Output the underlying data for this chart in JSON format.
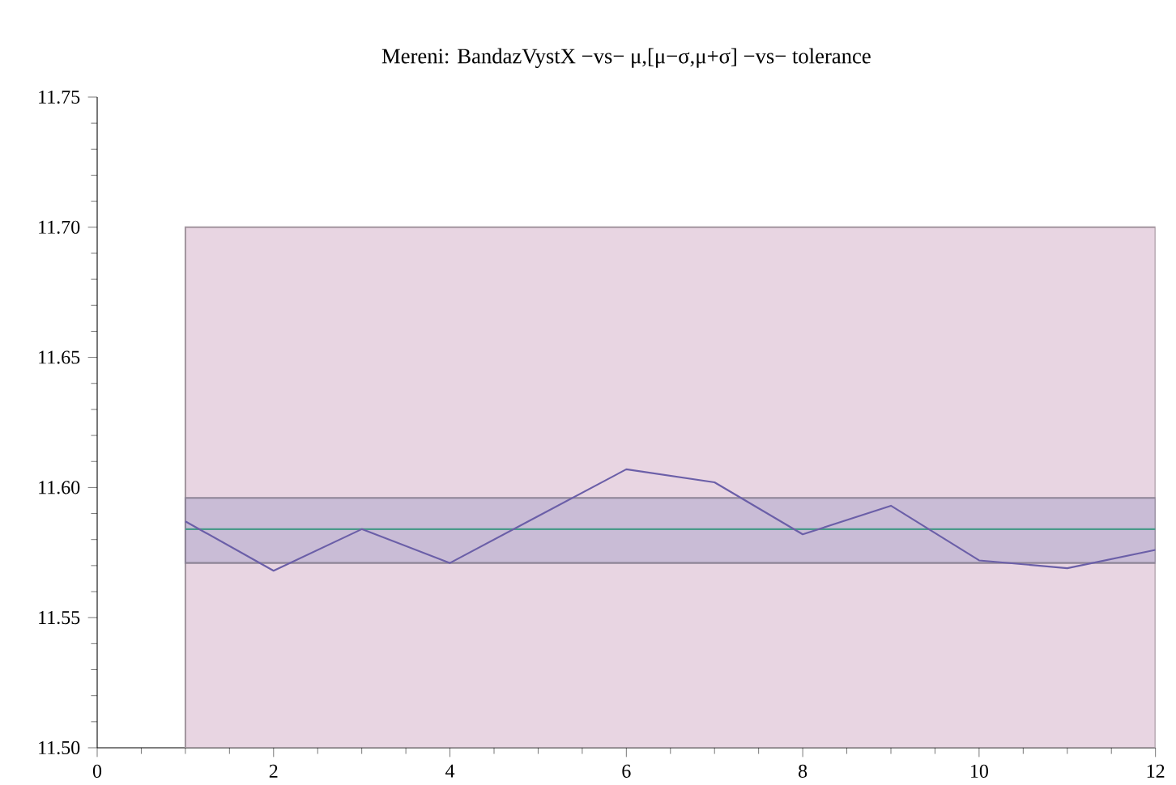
{
  "chart_data": {
    "type": "line",
    "title": "Mereni: BandazVystX −vs− μ,[μ−σ,μ+σ] −vs− tolerance",
    "x": [
      1,
      2,
      3,
      4,
      5,
      6,
      7,
      8,
      9,
      10,
      11,
      12
    ],
    "series": [
      {
        "color": "#6b5fa8",
        "values": [
          11.587,
          11.568,
          11.584,
          11.571,
          11.589,
          11.607,
          11.602,
          11.582,
          11.593,
          11.572,
          11.569,
          11.576
        ]
      }
    ],
    "bands": [
      {
        "axis": "y",
        "from": 11.5,
        "to": 11.7,
        "color": "#e8d5e2"
      },
      {
        "axis": "y",
        "from": 11.571,
        "to": 11.596,
        "color": "#c9bcd6"
      }
    ],
    "ref_lines": [
      {
        "axis": "y",
        "value": 11.584,
        "color": "#4a9a8a"
      }
    ],
    "xlim": [
      0,
      12
    ],
    "ylim": [
      11.5,
      11.75
    ],
    "xticks": [
      0,
      2,
      4,
      6,
      8,
      10,
      12
    ],
    "yticks": [
      {
        "value": 11.5,
        "label": "11.50"
      },
      {
        "value": 11.55,
        "label": "11.55"
      },
      {
        "value": 11.6,
        "label": "11.60"
      },
      {
        "value": 11.65,
        "label": "11.65"
      },
      {
        "value": 11.7,
        "label": "11.70"
      },
      {
        "value": 11.75,
        "label": "11.75"
      }
    ],
    "grid": false,
    "marker": "none",
    "line_style": "solid"
  }
}
